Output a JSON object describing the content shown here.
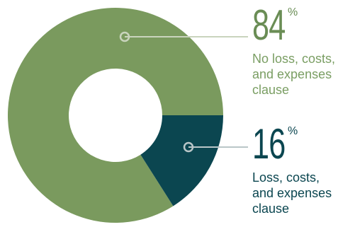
{
  "chart_data": {
    "type": "pie",
    "variant": "donut",
    "series": [
      {
        "value": 84,
        "unit": "%",
        "percent_text": "84",
        "label": "No loss, costs,\nand expenses\nclause",
        "color": "#7a9a5e",
        "label_color": "#7a9e63",
        "number_color": "#6a8d55"
      },
      {
        "value": 16,
        "unit": "%",
        "percent_text": "16",
        "label": "Loss, costs,\nand expenses\nclause",
        "color": "#0b4650",
        "label_color": "#0b4650",
        "number_color": "#0b4650"
      }
    ],
    "title": "",
    "legend": "right"
  }
}
